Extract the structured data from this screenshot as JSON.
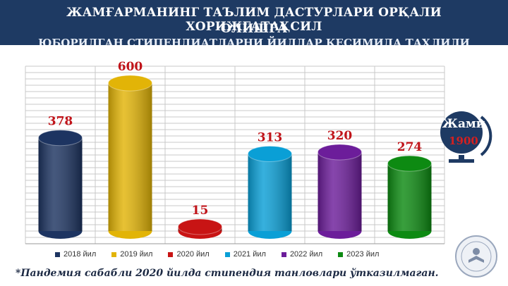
{
  "header": {
    "title_line1": "ЖАМҒАРМАНИНГ ТАЪЛИМ ДАСТУРЛАРИ ОРҚАЛИ ХОРИЖГАТАҲСИЛ",
    "title_line2": "ОЛИШГА",
    "title_line3": "ЮБОРИЛГАН СТИПЕНДИАТЛАРНИ ЙИЛЛАР КЕСИМИДА ТАҲЛИЛИ"
  },
  "chart_data": {
    "type": "bar",
    "categories": [
      "2018 йил",
      "2019 йил",
      "2020 йил",
      "2021 йил",
      "2022 йил",
      "2023 йил"
    ],
    "values": [
      378,
      600,
      15,
      313,
      320,
      274
    ],
    "colors": [
      "#1d3461",
      "#e2b407",
      "#c81414",
      "#0a9fd6",
      "#6c1d9a",
      "#0d8a12"
    ],
    "legend_position": "bottom",
    "grid": true,
    "ylim": [
      0,
      700
    ]
  },
  "total": {
    "label": "Жами",
    "value": "1900"
  },
  "footnote": "*Пандемия сабабли 2020 йилда стипендия танловлари ўтказилмаган.",
  "accent_colors": {
    "banner": "#1e3a63",
    "value_label": "#c0141a"
  }
}
